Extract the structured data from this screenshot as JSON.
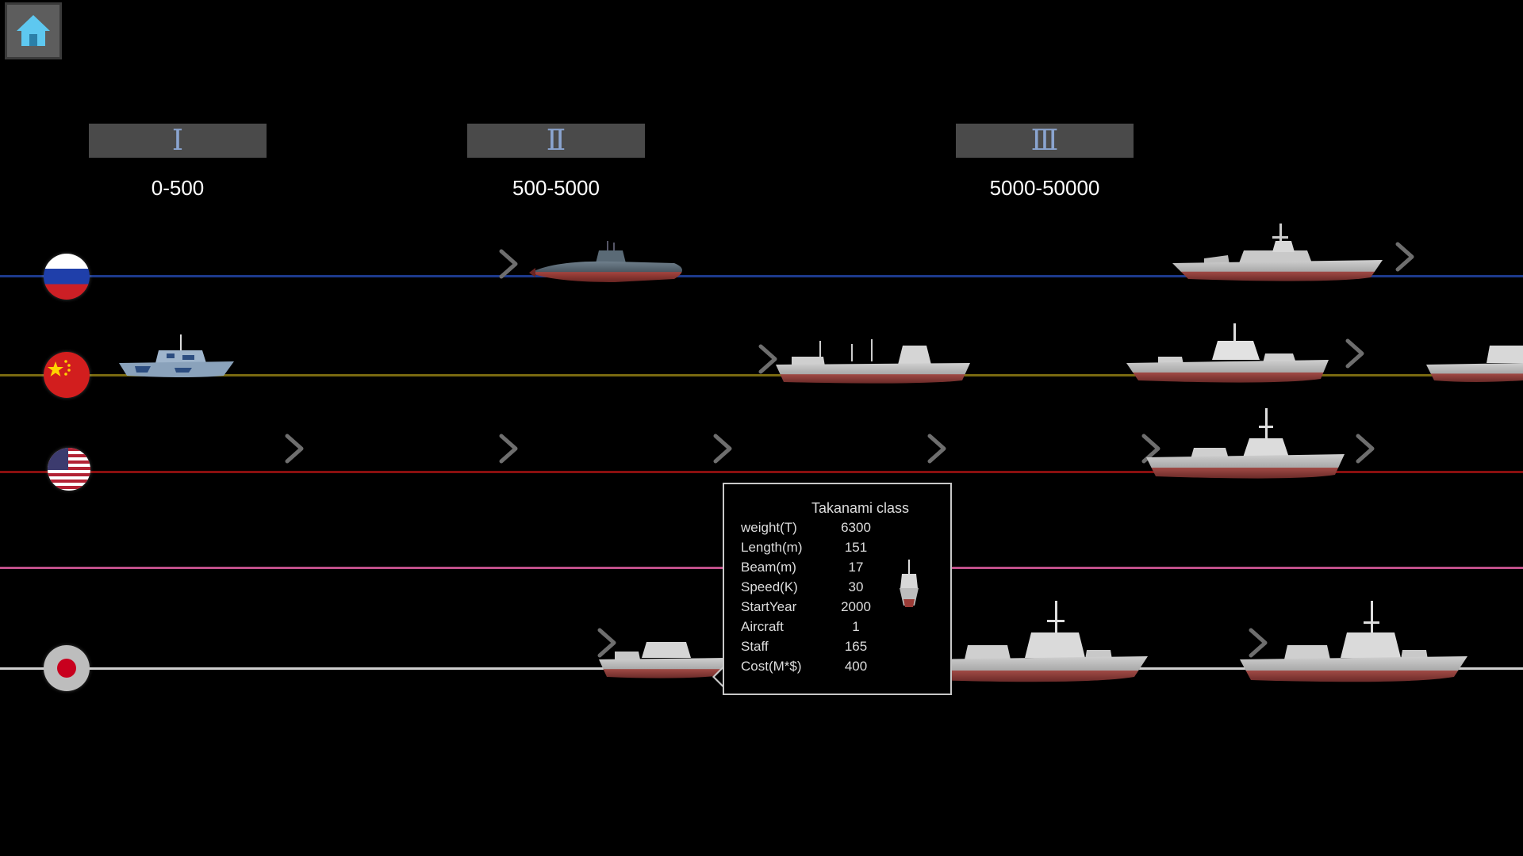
{
  "icons": {
    "home": "home-icon",
    "next": "chevron-right-icon"
  },
  "colors": {
    "home_accent": "#5ec8f0",
    "tab_numeral": "#8aa4cf",
    "lane_russia": "#1d3a8c",
    "lane_china": "#7a6a10",
    "lane_usa": "#8a0f0f",
    "lane_pink": "#c0508a",
    "lane_japan": "#cfcfcf"
  },
  "class_tabs": [
    {
      "numeral": "Ⅰ",
      "range": "0-500"
    },
    {
      "numeral": "Ⅱ",
      "range": "500-5000"
    },
    {
      "numeral": "Ⅲ",
      "range": "5000-50000"
    }
  ],
  "countries": [
    {
      "id": "russia",
      "flag": "russia-flag"
    },
    {
      "id": "china",
      "flag": "china-flag"
    },
    {
      "id": "usa",
      "flag": "usa-flag"
    },
    {
      "id": "unassigned",
      "flag": ""
    },
    {
      "id": "japan",
      "flag": "japan-flag"
    }
  ],
  "popup": {
    "title": "Takanami class",
    "rows": [
      {
        "key": "weight(T)",
        "value": "6300"
      },
      {
        "key": "Length(m)",
        "value": "151"
      },
      {
        "key": "Beam(m)",
        "value": "17"
      },
      {
        "key": "Speed(K)",
        "value": "30"
      },
      {
        "key": "StartYear",
        "value": "2000"
      },
      {
        "key": "Aircraft",
        "value": "1"
      },
      {
        "key": "Staff",
        "value": "165"
      },
      {
        "key": "Cost(M*$)",
        "value": "400"
      }
    ]
  }
}
